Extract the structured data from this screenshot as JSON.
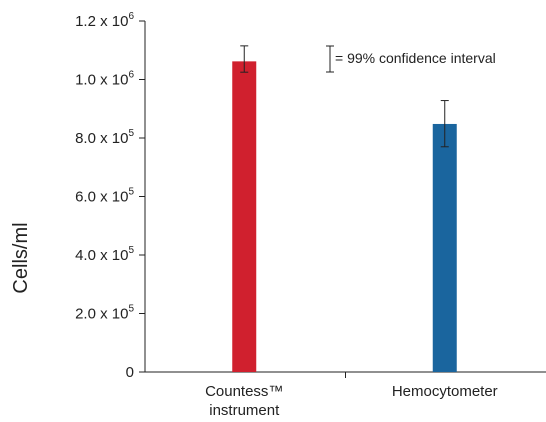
{
  "chart_data": {
    "type": "bar",
    "title": "",
    "xlabel": "",
    "ylabel": "Cells/ml",
    "ylim": [
      0,
      1200000
    ],
    "grid": false,
    "y_ticks": [
      {
        "value": 0,
        "mantissa": "0",
        "exponent": ""
      },
      {
        "value": 200000,
        "mantissa": "2.0 x 10",
        "exponent": "5"
      },
      {
        "value": 400000,
        "mantissa": "4.0 x 10",
        "exponent": "5"
      },
      {
        "value": 600000,
        "mantissa": "6.0 x 10",
        "exponent": "5"
      },
      {
        "value": 800000,
        "mantissa": "8.0 x 10",
        "exponent": "5"
      },
      {
        "value": 1000000,
        "mantissa": "1.0 x 10",
        "exponent": "6"
      },
      {
        "value": 1200000,
        "mantissa": "1.2 x 10",
        "exponent": "6"
      }
    ],
    "categories": [
      {
        "label_lines": [
          "Countess™",
          "instrument"
        ],
        "value": 1062000,
        "error_low": 1025000,
        "error_high": 1115000,
        "color": "#d0202e"
      },
      {
        "label_lines": [
          "Hemocytometer"
        ],
        "value": 848000,
        "error_low": 770000,
        "error_high": 928000,
        "color": "#1a659e"
      }
    ],
    "legend": {
      "label": "= 99% confidence interval",
      "placement": "top-right"
    }
  }
}
